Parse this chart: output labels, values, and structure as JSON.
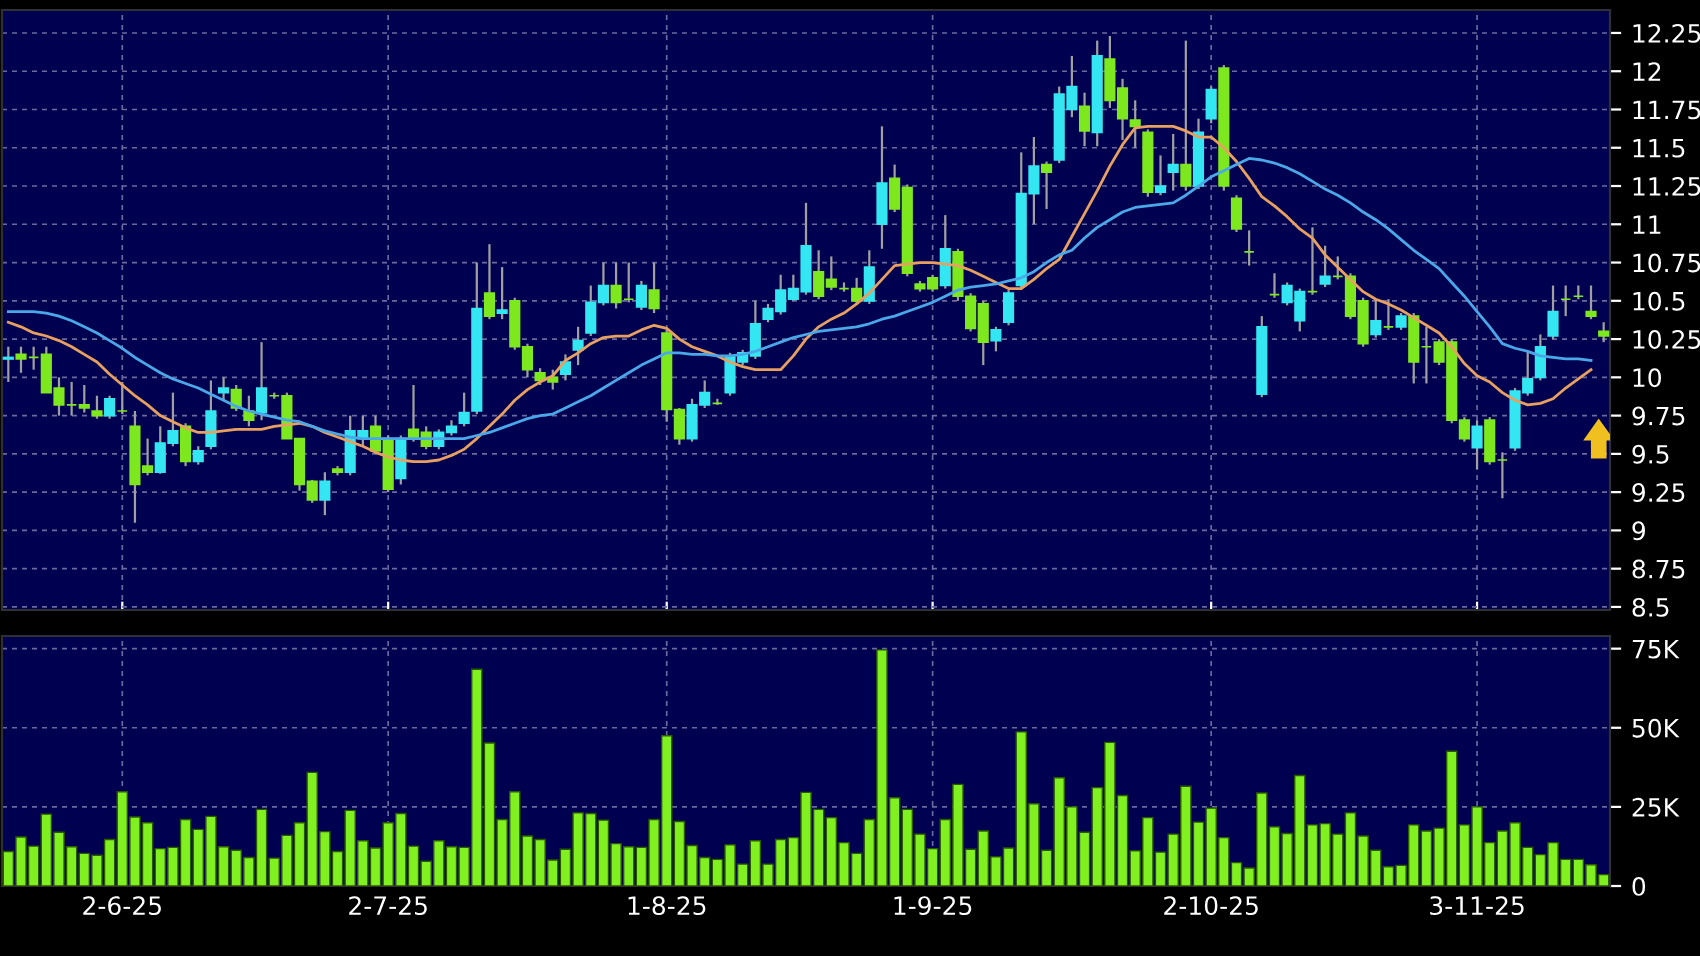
{
  "chart_data": [
    {
      "type": "candlestick",
      "tick_labels": "y",
      "grid": true,
      "legend": false,
      "categories": [
        null,
        null,
        null,
        null,
        null,
        null,
        null,
        null,
        null,
        null,
        null,
        null,
        null,
        null,
        null,
        null,
        null,
        null,
        null,
        null,
        null,
        null,
        null,
        null,
        null,
        null,
        null,
        null,
        null,
        null,
        null,
        null,
        null,
        null,
        null,
        null,
        null,
        null,
        null,
        null,
        null,
        null,
        null,
        null,
        null,
        null,
        null,
        null,
        null,
        null,
        null,
        null,
        null,
        null,
        null,
        null,
        null,
        null,
        null,
        null,
        null,
        null,
        null,
        null,
        null,
        null,
        null,
        null,
        null,
        null,
        null,
        null,
        null,
        null,
        null,
        null,
        null,
        null,
        null,
        null,
        null,
        null,
        null,
        null,
        null,
        null,
        null,
        null,
        null,
        null,
        null,
        null,
        null,
        null,
        null,
        null,
        null,
        null,
        null,
        null,
        null,
        null,
        null,
        null,
        null,
        null,
        null,
        null,
        null,
        null,
        null,
        null,
        null,
        null,
        null,
        null,
        null,
        null,
        null,
        null,
        null,
        null,
        null,
        null,
        null,
        null,
        null
      ],
      "ohlc": [
        [
          10.12,
          10.2,
          9.97,
          10.13
        ],
        [
          10.15,
          10.2,
          10.03,
          10.12
        ],
        [
          10.13,
          10.2,
          10.05,
          10.13
        ],
        [
          10.15,
          10.2,
          9.9,
          9.9
        ],
        [
          9.93,
          10.0,
          9.75,
          9.82
        ],
        [
          9.82,
          9.97,
          9.75,
          9.82
        ],
        [
          9.82,
          9.95,
          9.77,
          9.8
        ],
        [
          9.78,
          9.88,
          9.73,
          9.75
        ],
        [
          9.75,
          9.88,
          9.73,
          9.86
        ],
        [
          9.78,
          9.97,
          9.76,
          9.78
        ],
        [
          9.68,
          9.78,
          9.05,
          9.3
        ],
        [
          9.42,
          9.6,
          9.36,
          9.38
        ],
        [
          9.38,
          9.68,
          9.37,
          9.57
        ],
        [
          9.57,
          9.9,
          9.55,
          9.65
        ],
        [
          9.68,
          9.7,
          9.42,
          9.45
        ],
        [
          9.45,
          9.55,
          9.43,
          9.52
        ],
        [
          9.55,
          9.98,
          9.53,
          9.78
        ],
        [
          9.9,
          10.0,
          9.85,
          9.93
        ],
        [
          9.92,
          9.95,
          9.78,
          9.8
        ],
        [
          9.78,
          9.88,
          9.68,
          9.72
        ],
        [
          9.77,
          10.23,
          9.72,
          9.93
        ],
        [
          9.88,
          9.9,
          9.86,
          9.88
        ],
        [
          9.88,
          9.9,
          9.6,
          9.6
        ],
        [
          9.6,
          9.6,
          9.26,
          9.3
        ],
        [
          9.32,
          9.33,
          9.18,
          9.2
        ],
        [
          9.2,
          9.38,
          9.1,
          9.32
        ],
        [
          9.4,
          9.42,
          9.36,
          9.38
        ],
        [
          9.38,
          9.75,
          9.36,
          9.65
        ],
        [
          9.6,
          9.75,
          9.55,
          9.65
        ],
        [
          9.68,
          9.75,
          9.5,
          9.52
        ],
        [
          9.6,
          9.62,
          9.25,
          9.27
        ],
        [
          9.34,
          9.62,
          9.3,
          9.6
        ],
        [
          9.66,
          9.95,
          9.58,
          9.6
        ],
        [
          9.64,
          9.68,
          9.53,
          9.55
        ],
        [
          9.55,
          9.66,
          9.53,
          9.64
        ],
        [
          9.64,
          9.72,
          9.62,
          9.68
        ],
        [
          9.7,
          9.9,
          9.68,
          9.77
        ],
        [
          9.78,
          10.75,
          9.76,
          10.45
        ],
        [
          10.55,
          10.87,
          10.38,
          10.4
        ],
        [
          10.42,
          10.72,
          10.38,
          10.44
        ],
        [
          10.5,
          10.52,
          10.18,
          10.2
        ],
        [
          10.2,
          10.22,
          10.0,
          10.05
        ],
        [
          10.03,
          10.06,
          9.95,
          9.98
        ],
        [
          10.0,
          10.05,
          9.92,
          9.97
        ],
        [
          10.02,
          10.15,
          9.98,
          10.1
        ],
        [
          10.18,
          10.33,
          10.08,
          10.24
        ],
        [
          10.29,
          10.6,
          10.27,
          10.49
        ],
        [
          10.49,
          10.75,
          10.47,
          10.6
        ],
        [
          10.6,
          10.75,
          10.45,
          10.49
        ],
        [
          10.51,
          10.75,
          10.49,
          10.51
        ],
        [
          10.46,
          10.63,
          10.44,
          10.6
        ],
        [
          10.57,
          10.75,
          10.42,
          10.45
        ],
        [
          10.29,
          10.31,
          9.71,
          9.79
        ],
        [
          9.79,
          9.8,
          9.56,
          9.6
        ],
        [
          9.6,
          9.86,
          9.58,
          9.82
        ],
        [
          9.82,
          9.98,
          9.8,
          9.9
        ],
        [
          9.83,
          9.86,
          9.82,
          9.83
        ],
        [
          9.9,
          10.16,
          9.88,
          10.14
        ],
        [
          10.1,
          10.18,
          10.08,
          10.16
        ],
        [
          10.14,
          10.5,
          10.12,
          10.35
        ],
        [
          10.38,
          10.48,
          10.36,
          10.45
        ],
        [
          10.43,
          10.67,
          10.41,
          10.57
        ],
        [
          10.51,
          10.67,
          10.5,
          10.58
        ],
        [
          10.56,
          11.14,
          10.54,
          10.86
        ],
        [
          10.69,
          10.83,
          10.51,
          10.53
        ],
        [
          10.64,
          10.79,
          10.57,
          10.59
        ],
        [
          10.58,
          10.62,
          10.56,
          10.58
        ],
        [
          10.58,
          10.65,
          10.48,
          10.5
        ],
        [
          10.5,
          10.83,
          10.48,
          10.72
        ],
        [
          11.0,
          11.64,
          10.84,
          11.27
        ],
        [
          11.3,
          11.39,
          11.08,
          11.1
        ],
        [
          11.24,
          11.26,
          10.66,
          10.68
        ],
        [
          10.61,
          10.63,
          10.56,
          10.58
        ],
        [
          10.65,
          10.67,
          10.56,
          10.58
        ],
        [
          10.6,
          11.06,
          10.58,
          10.84
        ],
        [
          10.82,
          10.84,
          10.5,
          10.53
        ],
        [
          10.53,
          10.55,
          10.3,
          10.32
        ],
        [
          10.48,
          10.5,
          10.08,
          10.23
        ],
        [
          10.24,
          10.33,
          10.17,
          10.31
        ],
        [
          10.36,
          10.57,
          10.34,
          10.55
        ],
        [
          10.6,
          11.47,
          10.58,
          11.2
        ],
        [
          11.2,
          11.57,
          11.0,
          11.38
        ],
        [
          11.39,
          11.41,
          11.1,
          11.34
        ],
        [
          11.42,
          11.9,
          11.4,
          11.85
        ],
        [
          11.75,
          12.1,
          11.7,
          11.9
        ],
        [
          11.77,
          11.86,
          11.51,
          11.61
        ],
        [
          11.6,
          12.2,
          11.51,
          12.1
        ],
        [
          12.08,
          12.23,
          11.76,
          11.81
        ],
        [
          11.89,
          11.95,
          11.55,
          11.69
        ],
        [
          11.68,
          11.81,
          11.5,
          11.64
        ],
        [
          11.6,
          11.62,
          11.18,
          11.21
        ],
        [
          11.21,
          11.45,
          11.19,
          11.25
        ],
        [
          11.34,
          11.59,
          11.22,
          11.39
        ],
        [
          11.39,
          12.2,
          11.22,
          11.25
        ],
        [
          11.25,
          11.69,
          11.23,
          11.6
        ],
        [
          11.69,
          11.9,
          11.66,
          11.88
        ],
        [
          12.02,
          12.04,
          11.22,
          11.25
        ],
        [
          11.17,
          11.19,
          10.95,
          10.97
        ],
        [
          10.82,
          10.96,
          10.73,
          10.82
        ],
        [
          9.89,
          10.4,
          9.87,
          10.33
        ],
        [
          10.54,
          10.68,
          10.52,
          10.54
        ],
        [
          10.49,
          10.62,
          10.47,
          10.6
        ],
        [
          10.37,
          10.58,
          10.3,
          10.56
        ],
        [
          10.56,
          10.98,
          10.54,
          10.56
        ],
        [
          10.61,
          10.86,
          10.59,
          10.66
        ],
        [
          10.66,
          10.79,
          10.64,
          10.66
        ],
        [
          10.66,
          10.68,
          10.38,
          10.4
        ],
        [
          10.5,
          10.52,
          10.2,
          10.22
        ],
        [
          10.28,
          10.51,
          10.26,
          10.37
        ],
        [
          10.33,
          10.51,
          10.31,
          10.33
        ],
        [
          10.33,
          10.42,
          10.31,
          10.4
        ],
        [
          10.4,
          10.42,
          9.96,
          10.1
        ],
        [
          10.2,
          10.33,
          9.96,
          10.2
        ],
        [
          10.23,
          10.25,
          10.08,
          10.1
        ],
        [
          10.23,
          10.25,
          9.7,
          9.72
        ],
        [
          9.72,
          9.74,
          9.58,
          9.6
        ],
        [
          9.54,
          9.72,
          9.4,
          9.68
        ],
        [
          9.72,
          9.74,
          9.43,
          9.45
        ],
        [
          9.46,
          9.51,
          9.21,
          9.46
        ],
        [
          9.54,
          9.93,
          9.52,
          9.91
        ],
        [
          9.9,
          10.17,
          9.88,
          9.99
        ],
        [
          10.0,
          10.28,
          9.98,
          10.2
        ],
        [
          10.27,
          10.6,
          10.25,
          10.43
        ],
        [
          10.51,
          10.6,
          10.4,
          10.51
        ],
        [
          10.53,
          10.6,
          10.51,
          10.53
        ],
        [
          10.43,
          10.6,
          10.38,
          10.4
        ],
        [
          10.3,
          10.36,
          10.23,
          10.27
        ]
      ],
      "colors": [
        "#33e6f2",
        "#7ee81e",
        "#7ee81e",
        "#7ee81e",
        "#7ee81e",
        "#7ee81e",
        "#7ee81e",
        "#7ee81e",
        "#33e6f2",
        "#7ee81e",
        "#7ee81e",
        "#7ee81e",
        "#33e6f2",
        "#33e6f2",
        "#7ee81e",
        "#33e6f2",
        "#33e6f2",
        "#33e6f2",
        "#7ee81e",
        "#7ee81e",
        "#33e6f2",
        "#7ee81e",
        "#7ee81e",
        "#7ee81e",
        "#7ee81e",
        "#33e6f2",
        "#7ee81e",
        "#33e6f2",
        "#33e6f2",
        "#7ee81e",
        "#7ee81e",
        "#33e6f2",
        "#7ee81e",
        "#7ee81e",
        "#33e6f2",
        "#33e6f2",
        "#33e6f2",
        "#33e6f2",
        "#7ee81e",
        "#33e6f2",
        "#7ee81e",
        "#7ee81e",
        "#7ee81e",
        "#7ee81e",
        "#33e6f2",
        "#33e6f2",
        "#33e6f2",
        "#33e6f2",
        "#7ee81e",
        "#7ee81e",
        "#33e6f2",
        "#7ee81e",
        "#7ee81e",
        "#7ee81e",
        "#33e6f2",
        "#33e6f2",
        "#7ee81e",
        "#33e6f2",
        "#33e6f2",
        "#33e6f2",
        "#33e6f2",
        "#33e6f2",
        "#33e6f2",
        "#33e6f2",
        "#7ee81e",
        "#7ee81e",
        "#7ee81e",
        "#7ee81e",
        "#33e6f2",
        "#33e6f2",
        "#7ee81e",
        "#7ee81e",
        "#7ee81e",
        "#7ee81e",
        "#33e6f2",
        "#7ee81e",
        "#7ee81e",
        "#7ee81e",
        "#33e6f2",
        "#33e6f2",
        "#33e6f2",
        "#33e6f2",
        "#7ee81e",
        "#33e6f2",
        "#33e6f2",
        "#7ee81e",
        "#33e6f2",
        "#7ee81e",
        "#7ee81e",
        "#7ee81e",
        "#7ee81e",
        "#33e6f2",
        "#33e6f2",
        "#7ee81e",
        "#33e6f2",
        "#33e6f2",
        "#7ee81e",
        "#7ee81e",
        "#7ee81e",
        "#33e6f2",
        "#7ee81e",
        "#33e6f2",
        "#33e6f2",
        "#7ee81e",
        "#33e6f2",
        "#7ee81e",
        "#7ee81e",
        "#7ee81e",
        "#33e6f2",
        "#7ee81e",
        "#33e6f2",
        "#7ee81e",
        "#7ee81e",
        "#7ee81e",
        "#7ee81e",
        "#7ee81e",
        "#33e6f2",
        "#7ee81e",
        "#7ee81e",
        "#33e6f2",
        "#33e6f2",
        "#33e6f2",
        "#33e6f2",
        "#7ee81e",
        "#7ee81e",
        "#7ee81e",
        "#7ee81e"
      ],
      "series": [
        {
          "type": "line",
          "color": "#e8a060",
          "values": [
            10.36,
            10.33,
            10.29,
            10.27,
            10.24,
            10.2,
            10.15,
            10.1,
            10.02,
            9.95,
            9.88,
            9.82,
            9.75,
            9.71,
            9.67,
            9.64,
            9.64,
            9.65,
            9.66,
            9.66,
            9.66,
            9.68,
            9.69,
            9.7,
            9.68,
            9.64,
            9.61,
            9.58,
            9.55,
            9.51,
            9.48,
            9.46,
            9.45,
            9.45,
            9.46,
            9.49,
            9.53,
            9.6,
            9.68,
            9.76,
            9.85,
            9.92,
            9.97,
            10.01,
            10.11,
            10.16,
            10.22,
            10.26,
            10.27,
            10.27,
            10.31,
            10.34,
            10.32,
            10.25,
            10.2,
            10.17,
            10.14,
            10.1,
            10.07,
            10.05,
            10.05,
            10.05,
            10.14,
            10.25,
            10.33,
            10.38,
            10.42,
            10.48,
            10.55,
            10.64,
            10.73,
            10.74,
            10.75,
            10.75,
            10.74,
            10.73,
            10.7,
            10.66,
            10.62,
            10.58,
            10.58,
            10.64,
            10.71,
            10.77,
            10.92,
            11.07,
            11.22,
            11.38,
            11.52,
            11.63,
            11.64,
            11.64,
            11.64,
            11.61,
            11.57,
            11.57,
            11.5,
            11.41,
            11.3,
            11.18,
            11.12,
            11.05,
            10.97,
            10.91,
            10.8,
            10.72,
            10.64,
            10.56,
            10.51,
            10.48,
            10.44,
            10.39,
            10.34,
            10.29,
            10.2,
            10.09,
            10.01,
            9.97,
            9.9,
            9.85,
            9.82,
            9.83,
            9.86,
            9.93,
            9.99,
            10.05,
            null
          ]
        },
        {
          "type": "line",
          "color": "#4aa8e8",
          "values": [
            10.43,
            10.43,
            10.43,
            10.42,
            10.4,
            10.37,
            10.33,
            10.29,
            10.24,
            10.19,
            10.13,
            10.08,
            10.03,
            9.99,
            9.96,
            9.93,
            9.89,
            9.85,
            9.81,
            9.78,
            9.76,
            9.74,
            9.72,
            9.71,
            9.68,
            9.65,
            9.63,
            9.61,
            9.6,
            9.6,
            9.6,
            9.6,
            9.6,
            9.6,
            9.6,
            9.6,
            9.6,
            9.62,
            9.64,
            9.67,
            9.7,
            9.73,
            9.75,
            9.76,
            9.8,
            9.84,
            9.88,
            9.93,
            9.98,
            10.03,
            10.08,
            10.12,
            10.16,
            10.16,
            10.15,
            10.15,
            10.14,
            10.14,
            10.15,
            10.17,
            10.2,
            10.23,
            10.26,
            10.28,
            10.3,
            10.31,
            10.32,
            10.33,
            10.35,
            10.38,
            10.4,
            10.43,
            10.46,
            10.49,
            10.53,
            10.57,
            10.59,
            10.6,
            10.61,
            10.63,
            10.65,
            10.69,
            10.75,
            10.8,
            10.83,
            10.91,
            10.98,
            11.03,
            11.08,
            11.11,
            11.12,
            11.13,
            11.14,
            11.19,
            11.25,
            11.31,
            11.35,
            11.39,
            11.43,
            11.42,
            11.4,
            11.37,
            11.33,
            11.28,
            11.23,
            11.19,
            11.14,
            11.08,
            11.03,
            10.97,
            10.9,
            10.83,
            10.77,
            10.71,
            10.62,
            10.53,
            10.43,
            10.33,
            10.22,
            10.19,
            10.17,
            10.14,
            10.13,
            10.12,
            10.12,
            10.11,
            null
          ]
        }
      ],
      "ylim": [
        8.48,
        12.4
      ],
      "yticks": [
        8.5,
        8.75,
        9,
        9.25,
        9.5,
        9.75,
        10,
        10.25,
        10.5,
        10.75,
        11,
        11.25,
        11.5,
        11.75,
        12,
        12.25
      ]
    },
    {
      "type": "bar",
      "grid": true,
      "legend": false,
      "color": "#80f020",
      "categories": [
        null,
        null,
        null,
        null,
        null,
        null,
        null,
        null,
        null,
        "2-6-25",
        null,
        null,
        null,
        null,
        null,
        null,
        null,
        null,
        null,
        null,
        null,
        null,
        null,
        null,
        null,
        null,
        null,
        null,
        null,
        null,
        "2-7-25",
        null,
        null,
        null,
        null,
        null,
        null,
        null,
        null,
        null,
        null,
        null,
        null,
        null,
        null,
        null,
        null,
        null,
        null,
        null,
        null,
        null,
        "1-8-25",
        null,
        null,
        null,
        null,
        null,
        null,
        null,
        null,
        null,
        null,
        null,
        null,
        null,
        null,
        null,
        null,
        null,
        null,
        null,
        null,
        "1-9-25",
        null,
        null,
        null,
        null,
        null,
        null,
        null,
        null,
        null,
        null,
        null,
        null,
        null,
        null,
        null,
        null,
        null,
        null,
        null,
        null,
        null,
        "2-10-25",
        null,
        null,
        null,
        null,
        null,
        null,
        null,
        null,
        null,
        null,
        null,
        null,
        null,
        null,
        null,
        null,
        null,
        null,
        null,
        null,
        "3-11-25",
        null,
        null,
        null,
        null,
        null,
        null,
        null,
        null,
        null,
        null
      ],
      "values": [
        10.9,
        15.5,
        12.6,
        22.7,
        17,
        12.4,
        10.3,
        9.7,
        14.7,
        29.8,
        21.8,
        20,
        11.8,
        12.2,
        21,
        17.9,
        22,
        12.4,
        11.3,
        9,
        24.2,
        8.8,
        16,
        20,
        35.9,
        17.2,
        10.9,
        23.9,
        14.3,
        12,
        20,
        22.9,
        12.6,
        7.8,
        14.3,
        12.4,
        12.2,
        68.5,
        45.2,
        21,
        29.8,
        15.8,
        14.7,
        8.2,
        11.6,
        23.1,
        22.9,
        20.8,
        13.4,
        12.4,
        12.2,
        21,
        47.5,
        20.4,
        12.8,
        9,
        8.4,
        13,
        6.9,
        14.3,
        6.9,
        14.7,
        15.3,
        29.6,
        24.2,
        21.6,
        13.7,
        10.3,
        21,
        74.6,
        27.9,
        24.2,
        16.4,
        11.8,
        21,
        32.1,
        11.6,
        17.4,
        9.2,
        12,
        48.7,
        26,
        11.3,
        34.2,
        25,
        17,
        31.1,
        45.4,
        28.6,
        11.1,
        21.6,
        10.7,
        16.4,
        31.5,
        20.2,
        24.6,
        15.3,
        7.4,
        5.7,
        29.4,
        18.7,
        16.6,
        34.9,
        19.3,
        19.7,
        16.4,
        23.1,
        15.8,
        11.3,
        6.1,
        6.5,
        19.3,
        17.4,
        18.3,
        42.6,
        19.3,
        25,
        13.7,
        17.4,
        20,
        12.2,
        9.9,
        13.7,
        8.4,
        8.4,
        6.7,
        3.6
      ],
      "ylim": [
        0,
        79
      ],
      "yticks": [
        0,
        {
          "value": 25,
          "label": "25K"
        },
        {
          "value": 50,
          "label": "50K"
        },
        {
          "value": 75,
          "label": "75K"
        }
      ]
    }
  ]
}
